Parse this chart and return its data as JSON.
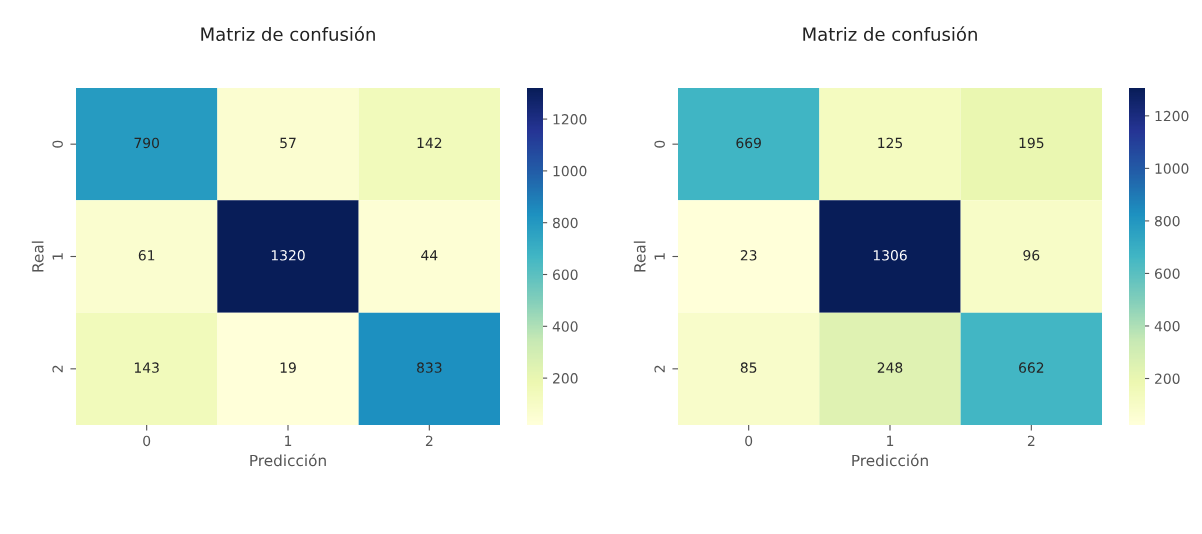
{
  "chart_data": [
    {
      "type": "heatmap",
      "title": "Matriz de confusión",
      "xlabel": "Predicción",
      "ylabel": "Real",
      "categories": [
        "0",
        "1",
        "2"
      ],
      "y_categories": [
        "0",
        "1",
        "2"
      ],
      "cells": [
        [
          790,
          57,
          142
        ],
        [
          61,
          1320,
          44
        ],
        [
          143,
          19,
          833
        ]
      ],
      "clim": [
        19,
        1320
      ],
      "cticks": [
        200,
        400,
        600,
        800,
        1000,
        1200
      ],
      "data_labels": true
    },
    {
      "type": "heatmap",
      "title": "Matriz de confusión",
      "xlabel": "Predicción",
      "ylabel": "Real",
      "categories": [
        "0",
        "1",
        "2"
      ],
      "y_categories": [
        "0",
        "1",
        "2"
      ],
      "cells": [
        [
          669,
          125,
          195
        ],
        [
          23,
          1306,
          96
        ],
        [
          85,
          248,
          662
        ]
      ],
      "clim": [
        23,
        1306
      ],
      "cticks": [
        200,
        400,
        600,
        800,
        1000,
        1200
      ],
      "data_labels": true
    }
  ]
}
